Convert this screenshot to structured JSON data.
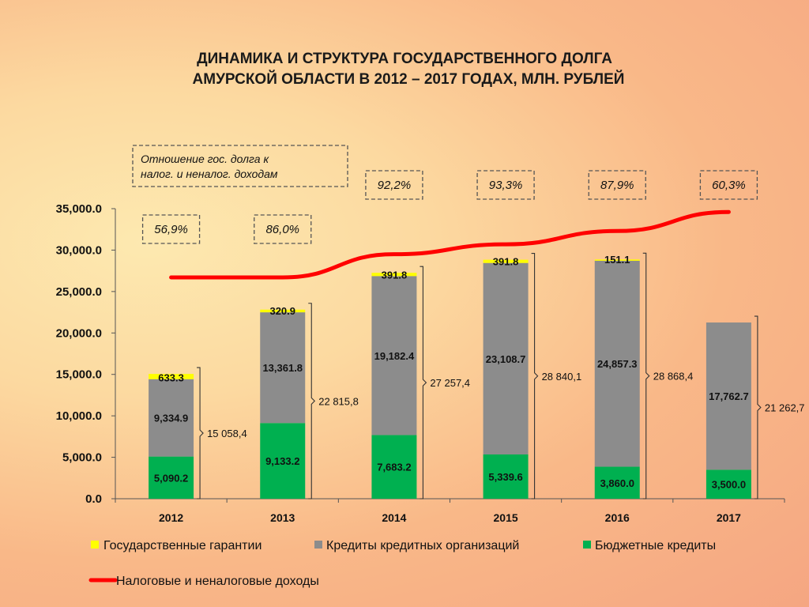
{
  "chart_data": {
    "type": "bar",
    "stacked": true,
    "title_lines": [
      "ДИНАМИКА И СТРУКТУРА ГОСУДАРСТВЕННОГО ДОЛГА",
      "АМУРСКОЙ ОБЛАСТИ  В 2012 – 2017 ГОДАХ, МЛН. РУБЛЕЙ"
    ],
    "categories": [
      "2012",
      "2013",
      "2014",
      "2015",
      "2016",
      "2017"
    ],
    "ylim": [
      0,
      35000
    ],
    "y_ticks": [
      "0.0",
      "5,000.0",
      "10,000.0",
      "15,000.0",
      "20,000.0",
      "25,000.0",
      "30,000.0",
      "35,000.0"
    ],
    "series": [
      {
        "name": "Бюджетные кредиты",
        "color": "#00b050",
        "values": [
          5090.2,
          9133.2,
          7683.2,
          5339.6,
          3860.0,
          3500.0
        ],
        "labels": [
          "5,090.2",
          "9,133.2",
          "7,683.2",
          "5,339.6",
          "3,860.0",
          "3,500.0"
        ]
      },
      {
        "name": "Кредиты кредитных организаций",
        "color": "#8c8c8c",
        "values": [
          9334.9,
          13361.8,
          19182.4,
          23108.7,
          24857.3,
          17762.7
        ],
        "labels": [
          "9,334.9",
          "13,361.8",
          "19,182.4",
          "23,108.7",
          "24,857.3",
          "17,762.7"
        ]
      },
      {
        "name": "Государственные гарантии",
        "color": "#ffff00",
        "values": [
          633.3,
          320.9,
          391.8,
          391.8,
          151.1,
          0
        ],
        "labels": [
          "633.3",
          "320.9",
          "391.8",
          "391.8",
          "151.1",
          ""
        ]
      }
    ],
    "line_series": {
      "name": "Налоговые и неналоговые доходы",
      "color": "#ff0000",
      "values": [
        26700,
        26700,
        29500,
        30700,
        32300,
        34600
      ]
    },
    "totals": [
      "15 058,4",
      "22 815,8",
      "27 257,4",
      "28 840,1",
      "28 868,4",
      "21 262,7"
    ],
    "ratio_note": [
      "Отношение гос. долга к",
      "налог. и неналог. доходам"
    ],
    "ratios": [
      "56,9%",
      "86,0%",
      "92,2%",
      "93,3%",
      "87,9%",
      "60,3%"
    ],
    "legend_order": [
      "Государственные гарантии",
      "Кредиты кредитных организаций",
      "Бюджетные кредиты"
    ]
  }
}
